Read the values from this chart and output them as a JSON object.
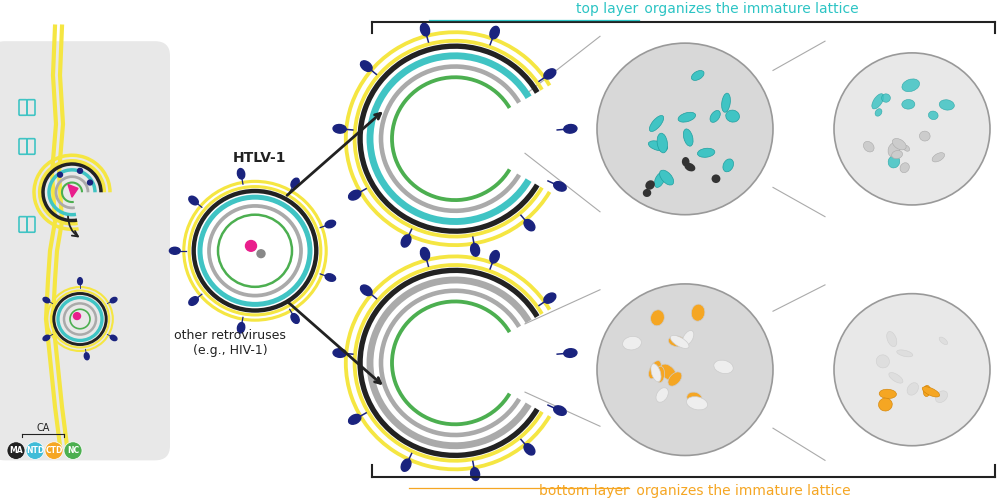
{
  "top_text_prefix": "top layer",
  "top_text_suffix": " organizes the immature lattice",
  "bottom_text_prefix": "bottom layer",
  "bottom_text_suffix": " organizes the immature lattice",
  "top_color": "#2CC4C4",
  "bottom_color": "#F5A623",
  "bracket_color": "#222222",
  "htlv_label": "HTLV-1",
  "other_label": "other retroviruses\n(e.g., HIV-1)",
  "arrow_color": "#111111",
  "bg_color": "#ffffff",
  "gray_bg": "#e8e8e8",
  "yellow_color": "#F5E642",
  "dark_color": "#222222",
  "teal_color": "#40C4C4",
  "orange_color": "#F5A623",
  "green_color": "#4CAF50",
  "navy_color": "#1a237e",
  "pink_color": "#E91E8C",
  "legend_labels": [
    "MA",
    "NTD",
    "CTD",
    "NC"
  ],
  "legend_colors": [
    "#222222",
    "#40BCD8",
    "#F5A623",
    "#4CAF50"
  ],
  "ca_label": "CA",
  "fig_width": 10.0,
  "fig_height": 5.0
}
